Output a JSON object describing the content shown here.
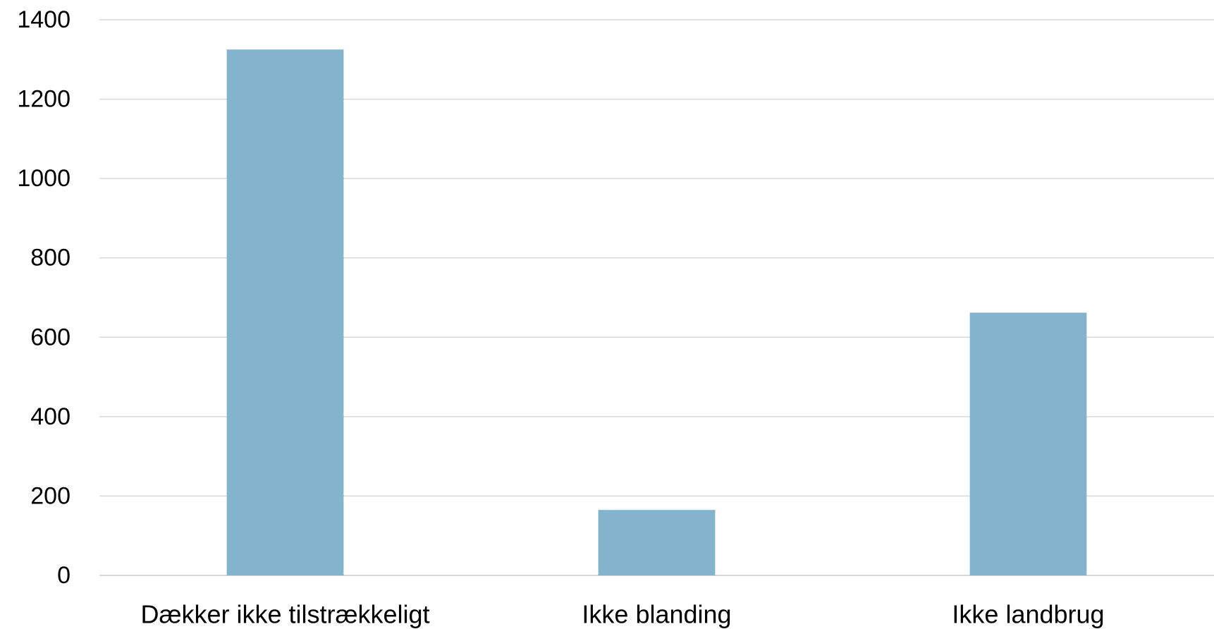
{
  "chart_data": {
    "type": "bar",
    "categories": [
      "Dækker ikke tilstrækkeligt",
      "Ikke blanding",
      "Ikke landbrug"
    ],
    "values": [
      1325,
      165,
      662
    ],
    "title": "",
    "xlabel": "",
    "ylabel": "",
    "ylim": [
      0,
      1400
    ],
    "yticks": [
      0,
      200,
      400,
      600,
      800,
      1000,
      1200,
      1400
    ],
    "grid": true,
    "legend": "none",
    "colors": {
      "bar": "#84B4CD",
      "grid": "#D9D9D9",
      "text": "#000000"
    }
  }
}
